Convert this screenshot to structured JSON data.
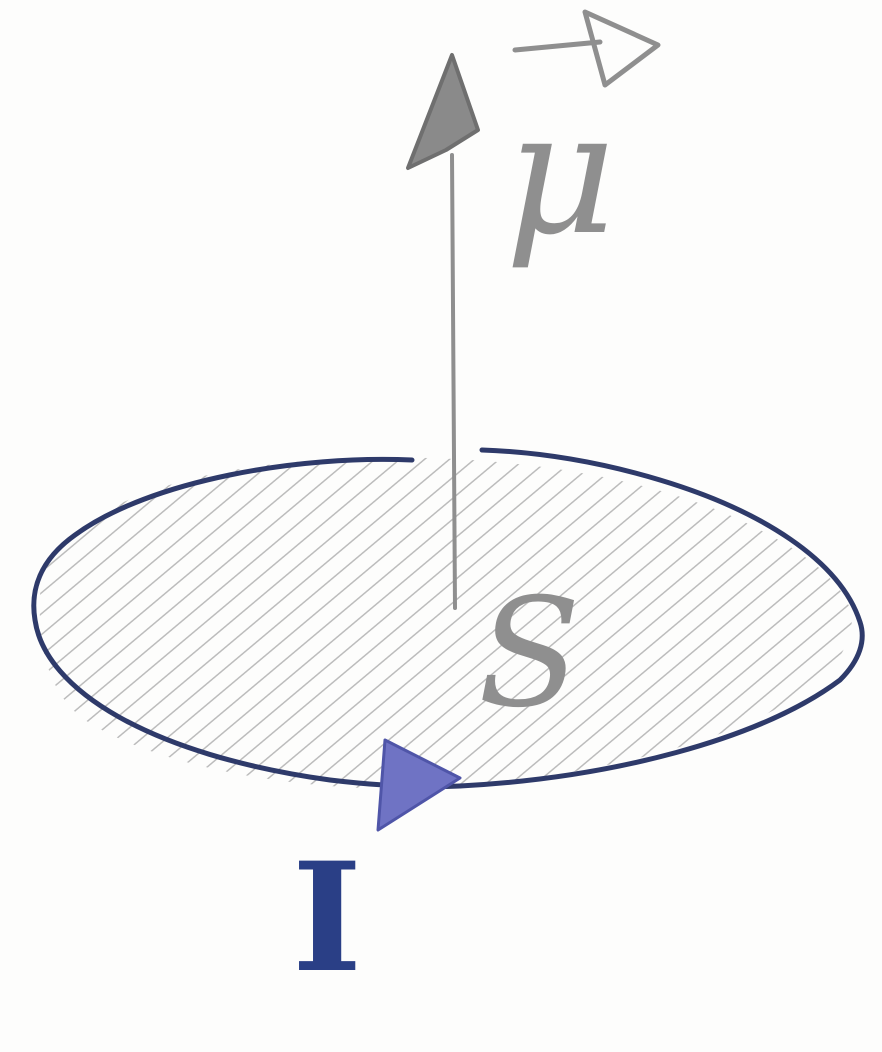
{
  "diagram": {
    "labels": {
      "magnetic_moment": "μ",
      "area": "S",
      "current": "I"
    },
    "colors": {
      "paper": "#fdfdfc",
      "pencil": "#8f8f8f",
      "pencil_dark": "#6f6f6f",
      "hatch": "#b5b5b5",
      "loop_ink": "#2e3a6a",
      "current_ink": "#2a3f86",
      "current_arrow": "#6f73c4"
    },
    "icons": {
      "moment_arrow": "vector-arrow-up-icon",
      "vector_hat": "vector-hat-icon",
      "current_direction": "current-direction-arrow-icon"
    }
  }
}
